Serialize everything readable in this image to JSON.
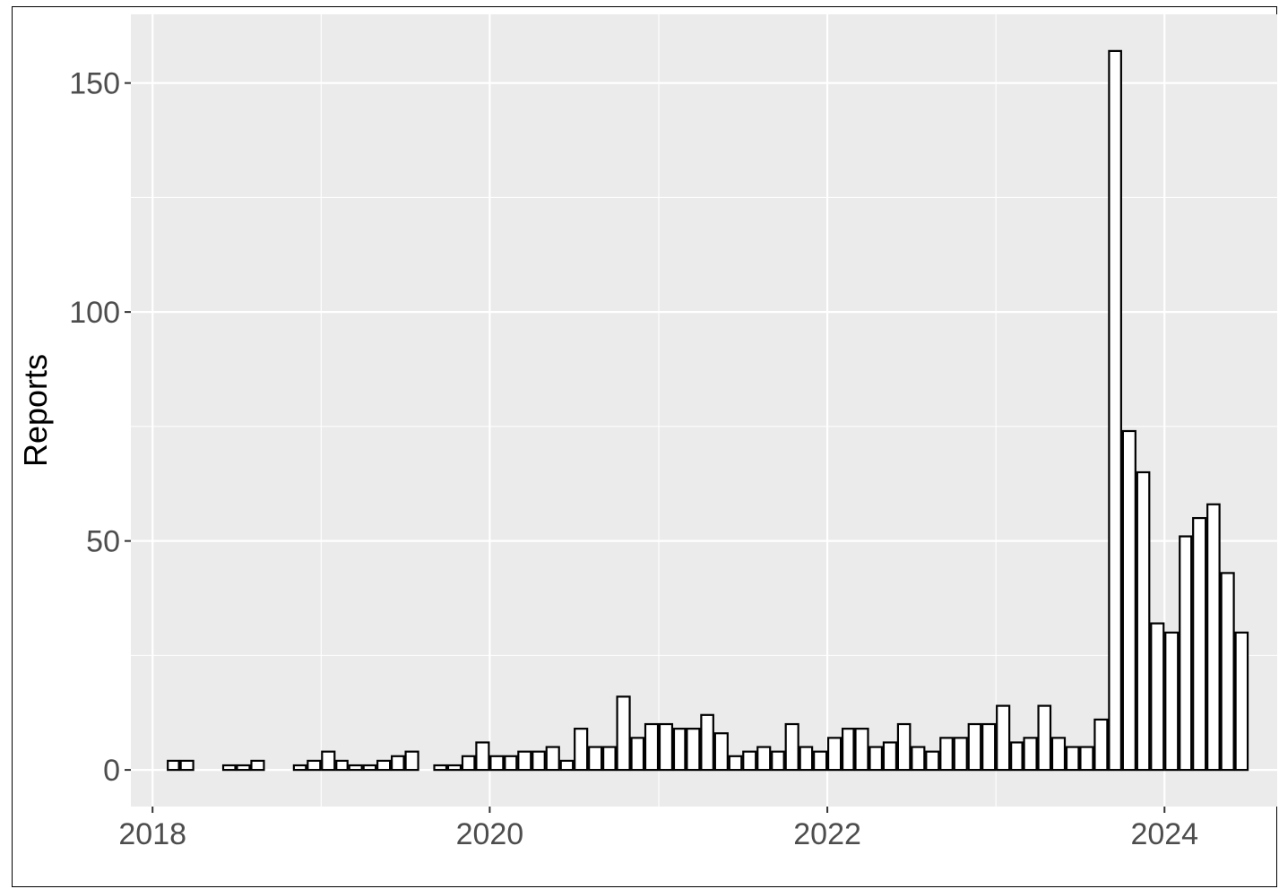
{
  "chart_data": {
    "type": "bar",
    "title": "",
    "xlabel": "",
    "ylabel": "Reports",
    "x_ticks": [
      "2018",
      "2020",
      "2022",
      "2024"
    ],
    "y_ticks": [
      "0",
      "50",
      "100",
      "150"
    ],
    "ylim": [
      -8,
      165
    ],
    "xlim": [
      "2017-11-15",
      "2024-09-01"
    ],
    "grid": true,
    "legend": "none",
    "panel_color": "#ebebeb",
    "bar_fill": "#ffffff",
    "bar_stroke": "#000000",
    "bar_interval": "month",
    "series": [
      {
        "x": [
          "2018-02",
          "2018-03",
          "2018-06",
          "2018-07",
          "2018-08",
          "2018-11",
          "2018-12",
          "2019-01",
          "2019-02",
          "2019-03",
          "2019-04",
          "2019-05",
          "2019-06",
          "2019-07",
          "2019-09",
          "2019-10",
          "2019-11",
          "2019-12",
          "2020-01",
          "2020-02",
          "2020-03",
          "2020-04",
          "2020-05",
          "2020-06",
          "2020-07",
          "2020-08",
          "2020-09",
          "2020-10",
          "2020-11",
          "2020-12",
          "2021-01",
          "2021-02",
          "2021-03",
          "2021-04",
          "2021-05",
          "2021-06",
          "2021-07",
          "2021-08",
          "2021-09",
          "2021-10",
          "2021-11",
          "2021-12",
          "2022-01",
          "2022-02",
          "2022-03",
          "2022-04",
          "2022-05",
          "2022-06",
          "2022-07",
          "2022-08",
          "2022-09",
          "2022-10",
          "2022-11",
          "2022-12",
          "2023-01",
          "2023-02",
          "2023-03",
          "2023-04",
          "2023-05",
          "2023-06",
          "2023-07",
          "2023-08",
          "2023-09",
          "2023-10",
          "2023-11",
          "2023-12",
          "2024-01",
          "2024-02",
          "2024-03",
          "2024-04",
          "2024-05",
          "2024-06"
        ],
        "values": [
          2,
          2,
          1,
          1,
          2,
          1,
          2,
          4,
          2,
          1,
          1,
          2,
          3,
          4,
          1,
          1,
          3,
          6,
          3,
          3,
          4,
          4,
          5,
          2,
          9,
          5,
          5,
          16,
          7,
          10,
          10,
          9,
          9,
          12,
          8,
          3,
          4,
          5,
          4,
          10,
          5,
          4,
          7,
          9,
          9,
          5,
          6,
          10,
          5,
          4,
          7,
          7,
          10,
          10,
          14,
          6,
          7,
          14,
          7,
          5,
          5,
          11,
          157,
          74,
          65,
          32,
          30,
          51,
          55,
          58,
          43,
          30
        ]
      }
    ]
  }
}
